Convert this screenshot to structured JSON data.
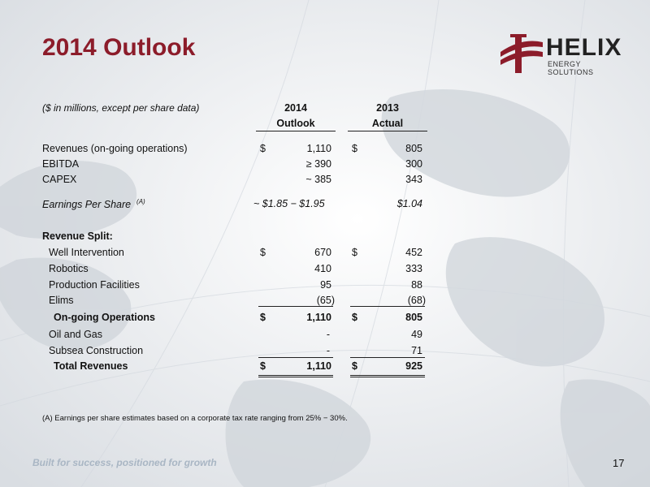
{
  "title": "2014 Outlook",
  "logo": {
    "name": "HELIX",
    "subtitle": "ENERGY SOLUTIONS"
  },
  "table": {
    "note": "($ in millions, except per share data)",
    "columns": [
      {
        "line1": "2014",
        "line2": "Outlook"
      },
      {
        "line1": "2013",
        "line2": "Actual"
      }
    ],
    "rows": {
      "revenues": {
        "label": "Revenues (on-going operations)",
        "d1": "$",
        "v1": "1,110",
        "d2": "$",
        "v2": "805"
      },
      "ebitda": {
        "label": "EBITDA",
        "v1": "≥ 390",
        "v2": "300"
      },
      "capex": {
        "label": "CAPEX",
        "v1": "~ 385",
        "v2": "343"
      },
      "eps": {
        "label": "Earnings Per Share",
        "sup": "(A)",
        "v1": "~ $1.85 − $1.95",
        "v2": "$1.04"
      },
      "split_header": {
        "label": "Revenue Split:"
      },
      "well": {
        "label": "Well Intervention",
        "d1": "$",
        "v1": "670",
        "d2": "$",
        "v2": "452"
      },
      "robotics": {
        "label": "Robotics",
        "v1": "410",
        "v2": "333"
      },
      "production": {
        "label": "Production Facilities",
        "v1": "95",
        "v2": "88"
      },
      "elims": {
        "label": "Elims",
        "v1": "(65)",
        "v2": "(68)"
      },
      "ongoing": {
        "label": "On-going Operations",
        "d1": "$",
        "v1": "1,110",
        "d2": "$",
        "v2": "805"
      },
      "oilgas": {
        "label": "Oil and Gas",
        "v1": "-",
        "v2": "49"
      },
      "subsea": {
        "label": "Subsea Construction",
        "v1": "-",
        "v2": "71"
      },
      "total": {
        "label": "Total Revenues",
        "d1": "$",
        "v1": "1,110",
        "d2": "$",
        "v2": "925"
      }
    }
  },
  "footnote": "(A)   Earnings per share estimates based on a corporate tax rate ranging from  25% − 30%.",
  "tagline": "Built for success, positioned for growth",
  "page_number": "17",
  "colors": {
    "title": "#8c1c2a",
    "tagline": "#a9b6c4"
  }
}
